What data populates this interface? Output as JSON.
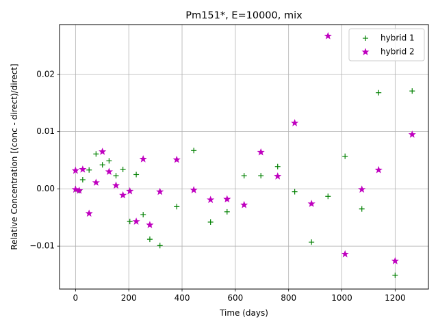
{
  "chart_data": {
    "type": "scatter",
    "title": "Pm151*, E=10000, mix",
    "xlabel": "Time (days)",
    "ylabel": "Relative Concentration [(conc - direct)/direct]",
    "xlim": [
      -60,
      1325
    ],
    "ylim": [
      -0.0175,
      0.0287
    ],
    "xticks": [
      0,
      200,
      400,
      600,
      800,
      1000,
      1200
    ],
    "xtick_labels": [
      "0",
      "200",
      "400",
      "600",
      "800",
      "1000",
      "1200"
    ],
    "yticks": [
      -0.01,
      0.0,
      0.01,
      0.02
    ],
    "ytick_labels": [
      "−0.01",
      "0.00",
      "0.01",
      "0.02"
    ],
    "grid": true,
    "legend_position": "top-right",
    "series": [
      {
        "name": "hybrid 1",
        "marker": "plus",
        "color": "#008000",
        "points": [
          [
            0,
            0.0
          ],
          [
            14,
            -0.0003
          ],
          [
            27,
            0.0016
          ],
          [
            51,
            0.0033
          ],
          [
            77,
            0.0061
          ],
          [
            101,
            0.0042
          ],
          [
            126,
            0.0049
          ],
          [
            152,
            0.0023
          ],
          [
            178,
            0.0034
          ],
          [
            204,
            -0.0057
          ],
          [
            228,
            0.0025
          ],
          [
            254,
            -0.0045
          ],
          [
            279,
            -0.0088
          ],
          [
            317,
            -0.0099
          ],
          [
            380,
            -0.0031
          ],
          [
            444,
            0.0067
          ],
          [
            507,
            -0.0058
          ],
          [
            569,
            -0.004
          ],
          [
            633,
            0.0023
          ],
          [
            696,
            0.0023
          ],
          [
            759,
            0.0039
          ],
          [
            823,
            -0.0005
          ],
          [
            886,
            -0.0093
          ],
          [
            948,
            -0.0013
          ],
          [
            1012,
            0.0057
          ],
          [
            1075,
            -0.0035
          ],
          [
            1138,
            0.0168
          ],
          [
            1200,
            -0.0151
          ],
          [
            1264,
            0.0171
          ]
        ]
      },
      {
        "name": "hybrid 2",
        "marker": "star",
        "color": "#bf00bf",
        "points": [
          [
            0,
            0.0032
          ],
          [
            0,
            -0.0001
          ],
          [
            14,
            -0.0003
          ],
          [
            27,
            0.0034
          ],
          [
            51,
            -0.0043
          ],
          [
            77,
            0.0011
          ],
          [
            101,
            0.0065
          ],
          [
            126,
            0.003
          ],
          [
            152,
            0.0006
          ],
          [
            178,
            -0.0011
          ],
          [
            204,
            -0.0004
          ],
          [
            228,
            -0.0057
          ],
          [
            254,
            0.0052
          ],
          [
            279,
            -0.0063
          ],
          [
            317,
            -0.0005
          ],
          [
            380,
            0.0051
          ],
          [
            444,
            -0.0002
          ],
          [
            507,
            -0.0019
          ],
          [
            569,
            -0.0018
          ],
          [
            633,
            -0.0028
          ],
          [
            696,
            0.0064
          ],
          [
            759,
            0.0022
          ],
          [
            823,
            0.0115
          ],
          [
            886,
            -0.0026
          ],
          [
            948,
            0.0267
          ],
          [
            1012,
            -0.0114
          ],
          [
            1075,
            -0.0001
          ],
          [
            1138,
            0.0033
          ],
          [
            1200,
            -0.0126
          ],
          [
            1264,
            0.0095
          ]
        ]
      }
    ]
  }
}
